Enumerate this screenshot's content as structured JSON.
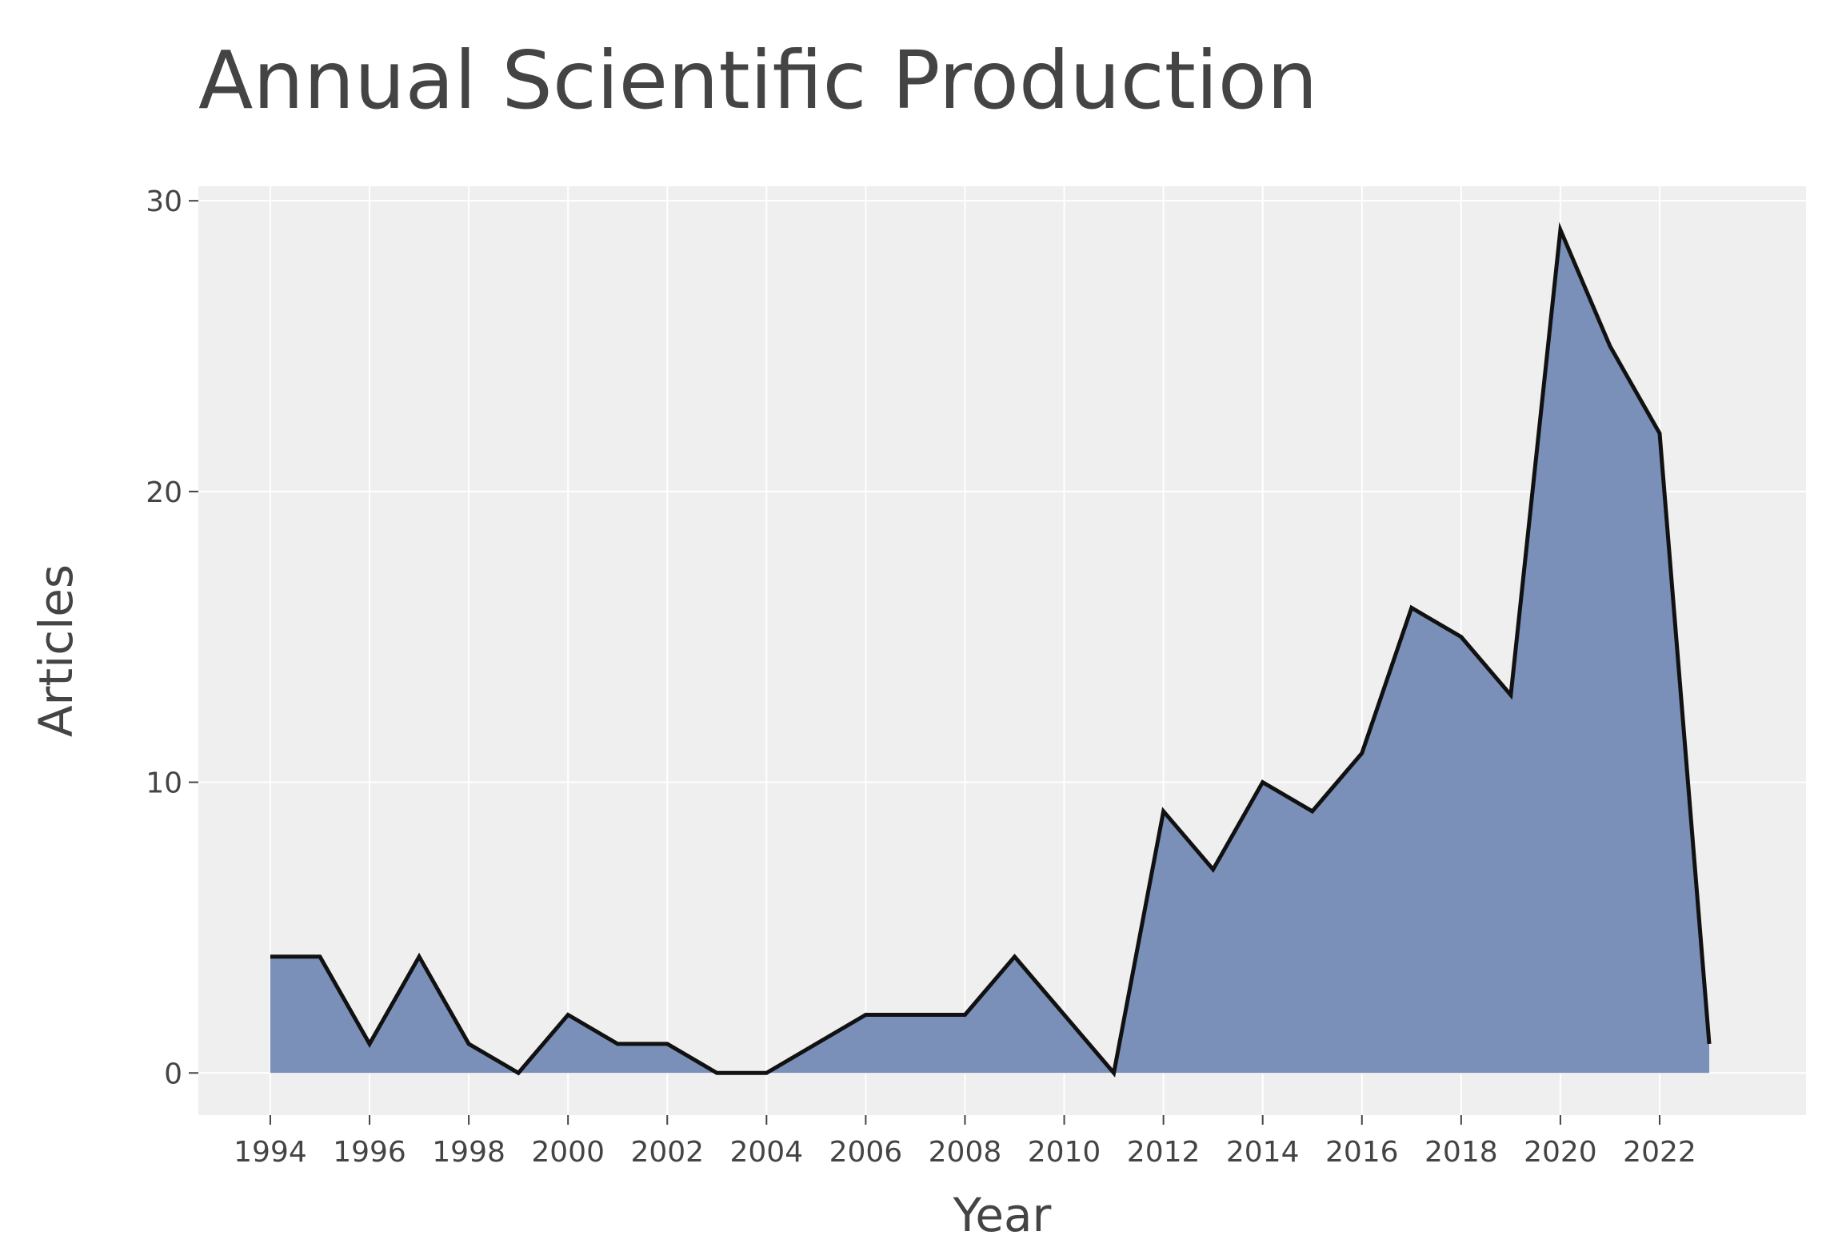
{
  "chart_data": {
    "type": "area",
    "title": "Annual Scientific Production",
    "xlabel": "Year",
    "ylabel": "Articles",
    "x": [
      1994,
      1995,
      1996,
      1997,
      1998,
      1999,
      2000,
      2001,
      2002,
      2003,
      2004,
      2005,
      2006,
      2007,
      2008,
      2009,
      2010,
      2011,
      2012,
      2013,
      2014,
      2015,
      2016,
      2017,
      2018,
      2019,
      2020,
      2021,
      2022,
      2023
    ],
    "series": [
      {
        "values": [
          4,
          4,
          1,
          4,
          1,
          0,
          2,
          1,
          1,
          0,
          0,
          1,
          2,
          2,
          2,
          4,
          2,
          0,
          9,
          7,
          10,
          9,
          11,
          16,
          15,
          13,
          29,
          25,
          22,
          1
        ]
      }
    ],
    "xticks": [
      "1994",
      "1996",
      "1998",
      "2000",
      "2002",
      "2004",
      "2006",
      "2008",
      "2010",
      "2012",
      "2014",
      "2016",
      "2018",
      "2020",
      "2022"
    ],
    "yticks": [
      "0",
      "10",
      "20",
      "30"
    ],
    "xlim": [
      1992.55,
      2024.95
    ],
    "ylim": [
      -1.45,
      30.5
    ],
    "grid": true,
    "legend": "none",
    "colors": {
      "fill": "#7a90b8",
      "line": "#111111",
      "plot_background": "#efefef",
      "grid": "#ffffff",
      "text": "#444444"
    }
  }
}
